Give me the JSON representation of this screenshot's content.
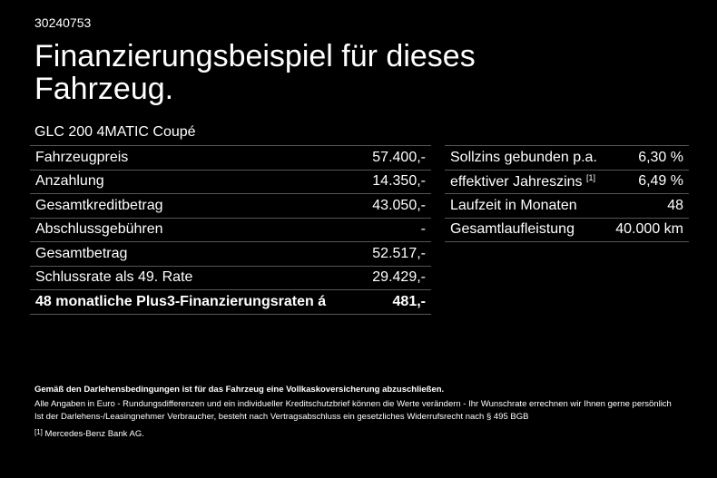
{
  "id": "30240753",
  "title": "Finanzierungsbeispiel für dieses Fahrzeug.",
  "model": "GLC 200 4MATIC Coupé",
  "left_table": [
    {
      "label": "Fahrzeugpreis",
      "value": "57.400,-"
    },
    {
      "label": "Anzahlung",
      "value": "14.350,-"
    },
    {
      "label": "Gesamtkreditbetrag",
      "value": "43.050,-"
    },
    {
      "label": "Abschlussgebühren",
      "value": "-"
    },
    {
      "label": "Gesamtbetrag",
      "value": "52.517,-"
    },
    {
      "label": "Schlussrate als 49. Rate",
      "value": "29.429,-"
    },
    {
      "label": "48 monatliche Plus3-Finanzierungsraten á",
      "value": "481,-"
    }
  ],
  "right_table": [
    {
      "label": "Sollzins gebunden p.a.",
      "value": "6,30 %"
    },
    {
      "label": "effektiver Jahreszins",
      "sup": "[1]",
      "value": "6,49 %"
    },
    {
      "label": "Laufzeit in Monaten",
      "value": "48"
    },
    {
      "label": "Gesamtlaufleistung",
      "value": "40.000 km"
    }
  ],
  "footer": {
    "bold_note": "Gemäß den Darlehensbedingungen ist für das Fahrzeug eine Vollkaskoversicherung abzuschließen.",
    "note1": "Alle Angaben in Euro - Rundungsdifferenzen und ein individueller Kreditschutzbrief können die Werte verändern - Ihr Wunschrate errechnen wir Ihnen gerne persönlich",
    "note2": "Ist der Darlehens-/Leasingnehmer Verbraucher, besteht nach Vertragsabschluss ein gesetzliches Widerrufsrecht nach § 495 BGB",
    "footnote_marker": "[1]",
    "footnote": "Mercedes-Benz Bank AG."
  }
}
